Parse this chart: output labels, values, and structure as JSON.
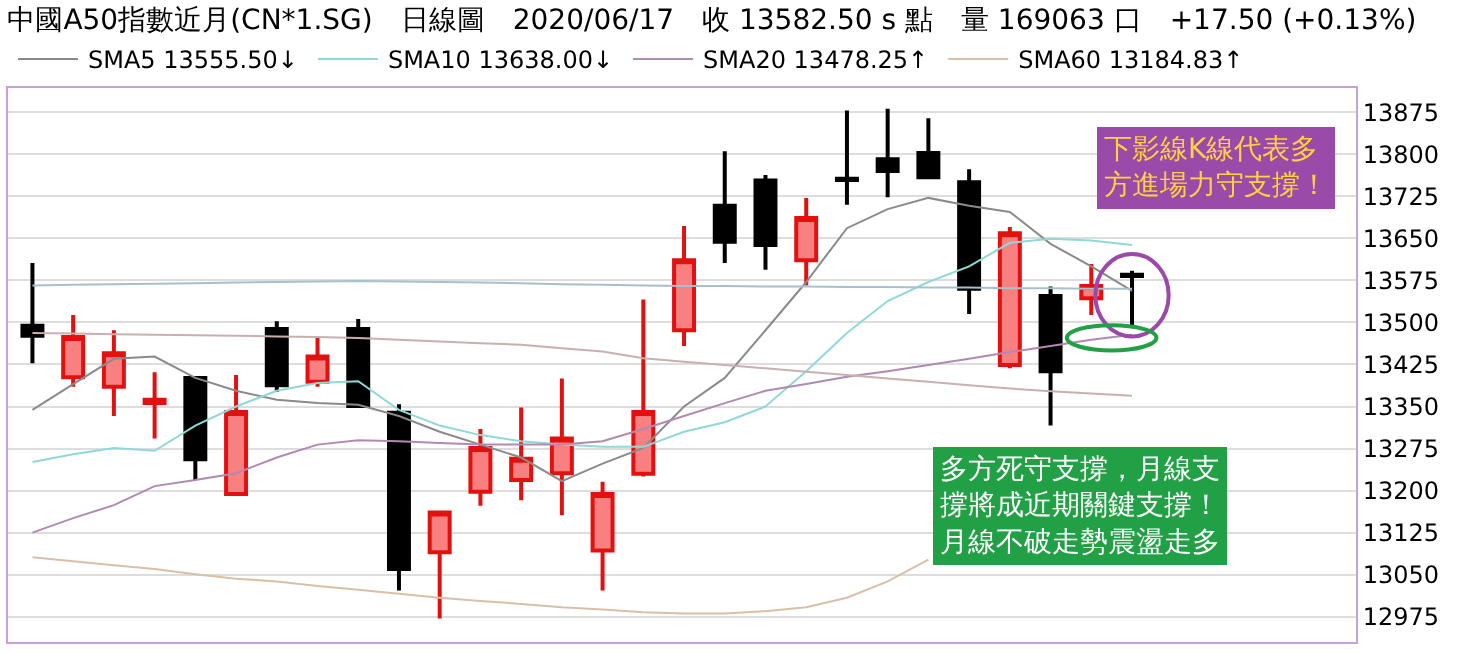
{
  "chart_data": {
    "type": "candlestick",
    "title": "中國A50指數近月(CN*1.SG)　日線圖　2020/06/17　收 13582.50 s 點　量 169063 口　+17.50 (+0.13%)",
    "categories": [
      null,
      null,
      null,
      null,
      null,
      null,
      null,
      null,
      null,
      null,
      null,
      null,
      null,
      null,
      null,
      null,
      null,
      null,
      null,
      null,
      null,
      null,
      null,
      null,
      null,
      null,
      null,
      null
    ],
    "ohlc": [
      [
        13494,
        13606,
        13427,
        13476
      ],
      [
        13402,
        13513,
        13385,
        13474
      ],
      [
        13385,
        13486,
        13333,
        13445
      ],
      [
        13356,
        13411,
        13293,
        13362
      ],
      [
        13401,
        13403,
        13219,
        13256
      ],
      [
        13194,
        13406,
        13192,
        13340
      ],
      [
        13488,
        13502,
        13376,
        13388
      ],
      [
        13394,
        13472,
        13385,
        13439
      ],
      [
        13488,
        13506,
        13351,
        13351
      ],
      [
        13339,
        13354,
        13022,
        13060
      ],
      [
        13090,
        13161,
        12972,
        13161
      ],
      [
        13198,
        13310,
        13173,
        13276
      ],
      [
        13219,
        13348,
        13183,
        13257
      ],
      [
        13231,
        13400,
        13156,
        13293
      ],
      [
        13093,
        13216,
        13022,
        13194
      ],
      [
        13230,
        13541,
        13225,
        13340
      ],
      [
        13486,
        13672,
        13458,
        13611
      ],
      [
        13708,
        13805,
        13606,
        13644
      ],
      [
        13753,
        13763,
        13594,
        13638
      ],
      [
        13611,
        13722,
        13566,
        13686
      ],
      [
        13756,
        13878,
        13710,
        13754
      ],
      [
        13791,
        13881,
        13723,
        13770
      ],
      [
        13802,
        13864,
        13756,
        13759
      ],
      [
        13750,
        13773,
        13515,
        13560
      ],
      [
        13424,
        13670,
        13418,
        13659
      ],
      [
        13547,
        13564,
        13316,
        13413
      ],
      [
        13543,
        13604,
        13513,
        13565
      ],
      [
        13585,
        13592,
        13490,
        13582.5
      ]
    ],
    "series": [
      {
        "type": "line",
        "name": "SMA5 13555.50↓",
        "color": "#8a8a8a",
        "values": [
          13344,
          13390,
          13435,
          13439,
          13401,
          13378,
          13362,
          13356,
          13353,
          13333,
          13305,
          13282,
          13259,
          13217,
          13248,
          13276,
          13350,
          13401,
          13486,
          13572,
          13668,
          13702,
          13722,
          13708,
          13697,
          13640,
          13600,
          13556
        ]
      },
      {
        "type": "line",
        "name": "SMA10 13638.00↓",
        "color": "#90d8d8",
        "values": [
          13251,
          13265,
          13276,
          13271,
          13316,
          13350,
          13378,
          13392,
          13395,
          13344,
          13316,
          13299,
          13288,
          13282,
          13278,
          13278,
          13305,
          13322,
          13350,
          13413,
          13481,
          13538,
          13572,
          13600,
          13642,
          13649,
          13646,
          13638
        ]
      },
      {
        "type": "line",
        "name": "SMA20 13478.25↑",
        "color": "#b08ab0",
        "values": [
          13125,
          13151,
          13174,
          13208,
          13219,
          13231,
          13259,
          13282,
          13290,
          13288,
          13285,
          13282,
          13282,
          13282,
          13288,
          13310,
          13333,
          13356,
          13378,
          13390,
          13403,
          13413,
          13424,
          13435,
          13447,
          13458,
          13469,
          13478
        ]
      },
      {
        "type": "line",
        "name": "SMA60 13184.83↑",
        "color": "#d8c0a8",
        "values": [
          13081,
          13074,
          13067,
          13060,
          13051,
          13043,
          13038,
          13030,
          13023,
          13016,
          13009,
          13003,
          12998,
          12992,
          12988,
          12983,
          12981,
          12981,
          12985,
          12992,
          13009,
          13038,
          13077,
          null,
          null,
          null,
          null,
          null
        ]
      },
      {
        "type": "line",
        "color": "#a8c0cc",
        "values": [
          13566,
          13567,
          13568,
          13569,
          13570,
          13571,
          13572,
          13573,
          13574,
          13573,
          13572,
          13571,
          13570,
          13568,
          13567,
          13566,
          13565,
          13565,
          13564,
          13564,
          13563,
          13563,
          13562,
          13562,
          13561,
          13561,
          13560,
          13560
        ]
      },
      {
        "type": "line",
        "color": "#c8b0b0",
        "values": [
          13481,
          13480,
          13479,
          13478,
          13477,
          13476,
          13475,
          13474,
          13472,
          13469,
          13466,
          13463,
          13460,
          13454,
          13448,
          13436,
          13430,
          13424,
          13418,
          13412,
          13406,
          13400,
          13394,
          13388,
          13382,
          13377,
          13373,
          13369
        ]
      }
    ],
    "ylim": [
      12930,
      13918
    ],
    "yticks": [
      12975,
      13050,
      13125,
      13200,
      13275,
      13350,
      13425,
      13500,
      13575,
      13650,
      13725,
      13800,
      13875
    ],
    "grid": "y",
    "legend": "top left",
    "tick_labels": "y",
    "annotations": [
      "下影線K線代表多方進場力守支撐！",
      "多方死守支撐，月線支撐將成近期關鍵支撐！月線不破走勢震盪走多"
    ]
  }
}
